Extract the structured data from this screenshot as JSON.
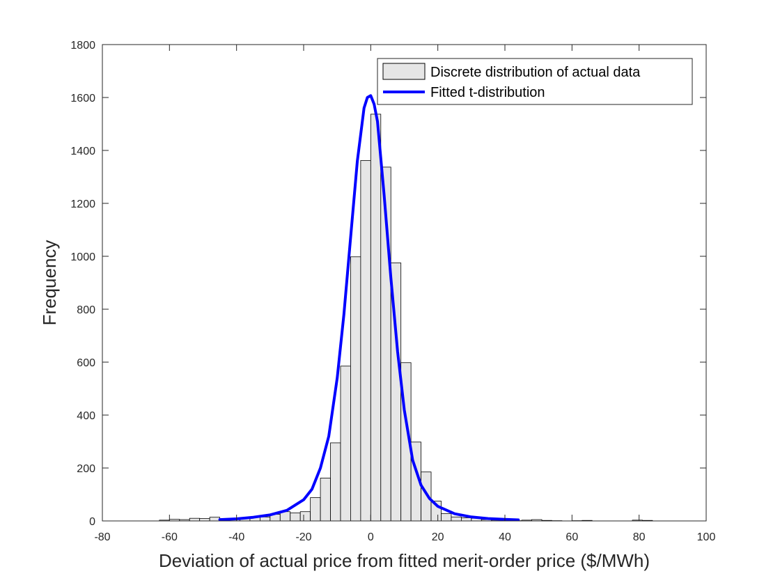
{
  "chart_data": {
    "type": "bar",
    "xlabel": "Deviation of actual price from fitted merit-order price ($/MWh)",
    "ylabel": "Frequency",
    "xlim": [
      -80,
      100
    ],
    "ylim": [
      0,
      1800
    ],
    "xticks": [
      -80,
      -60,
      -40,
      -20,
      0,
      20,
      40,
      60,
      80,
      100
    ],
    "yticks": [
      0,
      200,
      400,
      600,
      800,
      1000,
      1200,
      1400,
      1600,
      1800
    ],
    "grid": false,
    "legend_position": "top-right",
    "bin_width": 3,
    "histogram": {
      "name": "Discrete distribution of actual data",
      "color": "#e6e6e6",
      "edge_color": "#000000",
      "bins": [
        {
          "x": -61.5,
          "y": 3
        },
        {
          "x": -58.5,
          "y": 6
        },
        {
          "x": -55.5,
          "y": 5
        },
        {
          "x": -52.5,
          "y": 10
        },
        {
          "x": -49.5,
          "y": 9
        },
        {
          "x": -46.5,
          "y": 14
        },
        {
          "x": -43.5,
          "y": 3
        },
        {
          "x": -40.5,
          "y": 7
        },
        {
          "x": -37.5,
          "y": 10
        },
        {
          "x": -34.5,
          "y": 15
        },
        {
          "x": -31.5,
          "y": 15
        },
        {
          "x": -28.5,
          "y": 25
        },
        {
          "x": -25.5,
          "y": 35
        },
        {
          "x": -22.5,
          "y": 30
        },
        {
          "x": -19.5,
          "y": 35
        },
        {
          "x": -16.5,
          "y": 88
        },
        {
          "x": -13.5,
          "y": 162
        },
        {
          "x": -10.5,
          "y": 295
        },
        {
          "x": -7.5,
          "y": 585
        },
        {
          "x": -4.5,
          "y": 998
        },
        {
          "x": -1.5,
          "y": 1362
        },
        {
          "x": 1.5,
          "y": 1537
        },
        {
          "x": 4.5,
          "y": 1337
        },
        {
          "x": 7.5,
          "y": 975
        },
        {
          "x": 10.5,
          "y": 598
        },
        {
          "x": 13.5,
          "y": 298
        },
        {
          "x": 16.5,
          "y": 185
        },
        {
          "x": 19.5,
          "y": 75
        },
        {
          "x": 22.5,
          "y": 28
        },
        {
          "x": 25.5,
          "y": 15
        },
        {
          "x": 28.5,
          "y": 12
        },
        {
          "x": 31.5,
          "y": 10
        },
        {
          "x": 34.5,
          "y": 5
        },
        {
          "x": 37.5,
          "y": 3
        },
        {
          "x": 40.5,
          "y": 2
        },
        {
          "x": 43.5,
          "y": 1
        },
        {
          "x": 46.5,
          "y": 3
        },
        {
          "x": 49.5,
          "y": 5
        },
        {
          "x": 52.5,
          "y": 2
        },
        {
          "x": 55.5,
          "y": 1
        },
        {
          "x": 61.5,
          "y": 1
        },
        {
          "x": 64.5,
          "y": 2
        },
        {
          "x": 79.5,
          "y": 3
        },
        {
          "x": 82.5,
          "y": 2
        }
      ]
    },
    "fit": {
      "name": "Fitted t-distribution",
      "color": "#0000ff",
      "x": [
        -45,
        -40,
        -35,
        -30,
        -25,
        -20,
        -17.5,
        -15,
        -12.5,
        -10,
        -8,
        -6,
        -4,
        -2,
        -1,
        0,
        1,
        2,
        4,
        6,
        8,
        10,
        12.5,
        15,
        17.5,
        20,
        25,
        30,
        35,
        40,
        44
      ],
      "y": [
        5,
        8,
        14,
        23,
        40,
        80,
        120,
        200,
        320,
        540,
        780,
        1070,
        1360,
        1560,
        1600,
        1607,
        1575,
        1510,
        1230,
        920,
        640,
        420,
        230,
        135,
        85,
        55,
        27,
        15,
        9,
        6,
        4
      ]
    }
  }
}
